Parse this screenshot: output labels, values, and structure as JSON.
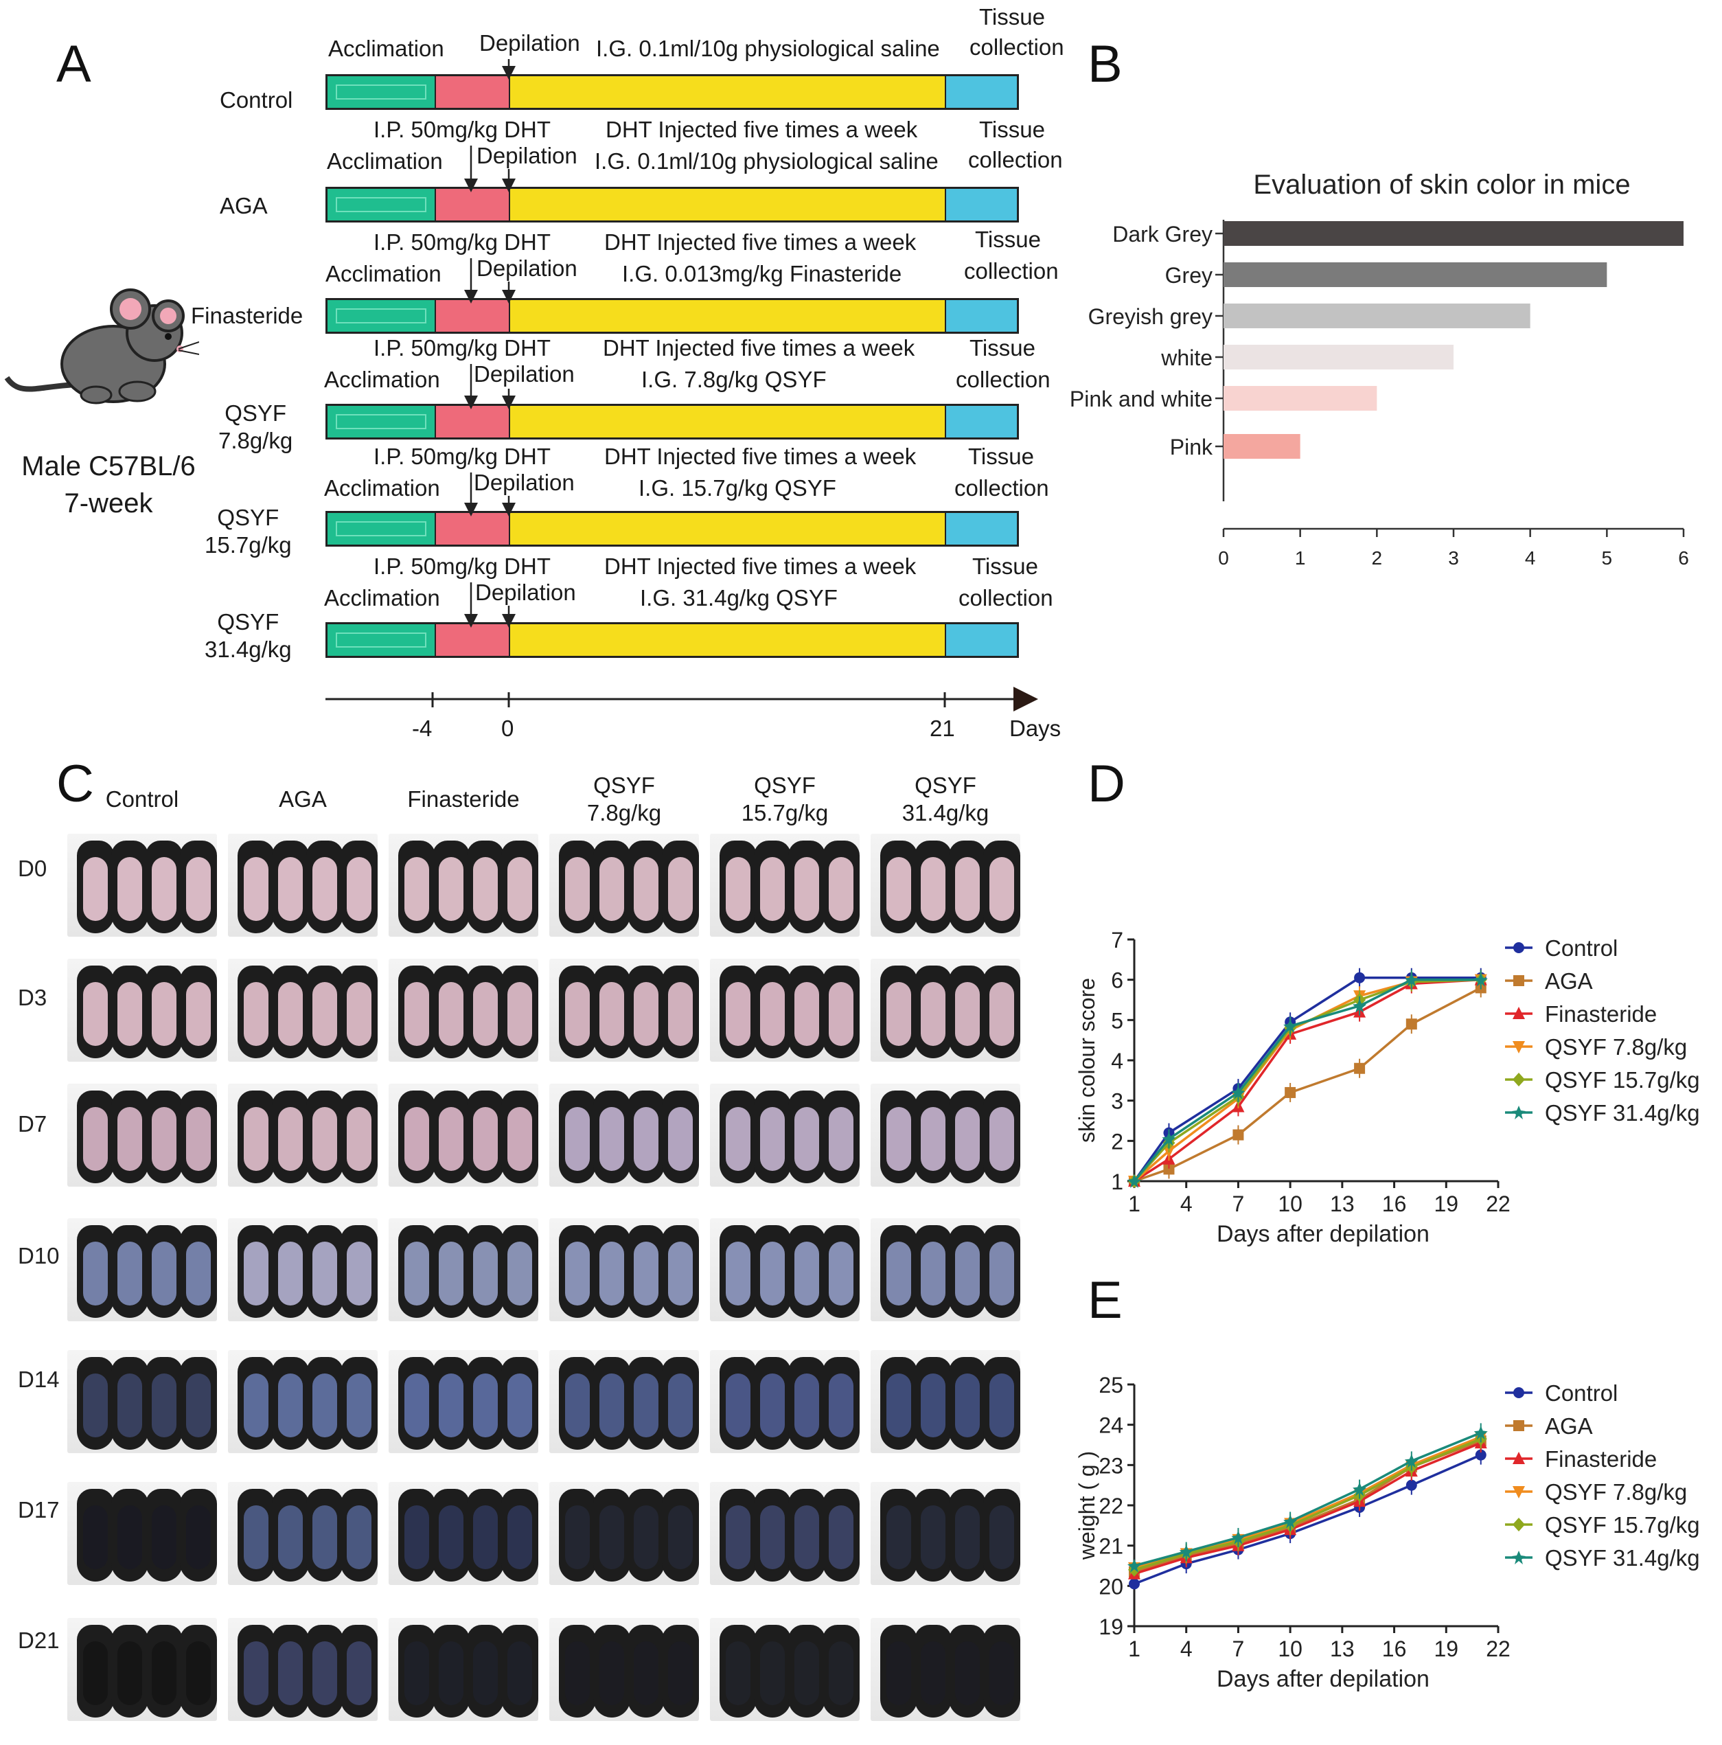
{
  "panels": {
    "a": "A",
    "b": "B",
    "c": "C",
    "d": "D",
    "e": "E"
  },
  "panel_a": {
    "animal_line1": "Male C57BL/6",
    "animal_line2": "7-week",
    "top_labels": {
      "acclimation": "Acclimation",
      "depilation": "Depilation",
      "saline": "I.G. 0.1ml/10g physiological saline",
      "tissue1": "Tissue",
      "tissue2": "collection"
    },
    "groups": [
      {
        "name": "Control",
        "name2": ""
      },
      {
        "name": "AGA",
        "name2": "",
        "ip": "I.P.  50mg/kg DHT",
        "dht": "DHT Injected five times a week",
        "ig": "I.G. 0.1ml/10g physiological saline"
      },
      {
        "name": "Finasteride",
        "name2": "",
        "ip": "I.P.  50mg/kg DHT",
        "dht": "DHT Injected five times a week",
        "ig": "I.G. 0.013mg/kg Finasteride"
      },
      {
        "name": "QSYF",
        "name2": "7.8g/kg",
        "ip": "I.P.  50mg/kg DHT",
        "dht": "DHT Injected five times a week",
        "ig": "I.G. 7.8g/kg QSYF"
      },
      {
        "name": "QSYF",
        "name2": "15.7g/kg",
        "ip": "I.P.  50mg/kg DHT",
        "dht": "DHT Injected five times a week",
        "ig": "I.G. 15.7g/kg QSYF"
      },
      {
        "name": "QSYF",
        "name2": "31.4g/kg",
        "ip": "I.P.  50mg/kg DHT",
        "dht": "DHT Injected five times a week",
        "ig": "I.G. 31.4g/kg QSYF"
      }
    ],
    "axis": {
      "ticks": [
        "-4",
        "0",
        "21"
      ],
      "unit": "Days"
    }
  },
  "panel_c": {
    "columns": [
      {
        "line1": "Control",
        "line2": ""
      },
      {
        "line1": "AGA",
        "line2": ""
      },
      {
        "line1": "Finasteride",
        "line2": ""
      },
      {
        "line1": "QSYF",
        "line2": "7.8g/kg"
      },
      {
        "line1": "QSYF",
        "line2": "15.7g/kg"
      },
      {
        "line1": "QSYF",
        "line2": "31.4g/kg"
      }
    ],
    "rows": [
      "D0",
      "D3",
      "D7",
      "D10",
      "D14",
      "D17",
      "D21"
    ]
  },
  "chart_data": [
    {
      "id": "B",
      "type": "bar",
      "orientation": "horizontal",
      "title": "Evaluation of skin color in mice",
      "categories": [
        "Dark Grey",
        "Grey",
        "Greyish grey",
        "white",
        "Pink and white",
        "Pink"
      ],
      "values": [
        6,
        5,
        4,
        3,
        2,
        1
      ],
      "colors": [
        "#4a4545",
        "#7b7b7b",
        "#c2c2c2",
        "#ebe3e3",
        "#f8d3d0",
        "#f4a79f"
      ],
      "xlim": [
        0,
        6
      ],
      "xticks": [
        "0",
        "1",
        "2",
        "3",
        "4",
        "5",
        "6"
      ]
    },
    {
      "id": "D",
      "type": "line",
      "title": "",
      "xlabel": "Days after depilation",
      "ylabel": "skin colour score",
      "x": [
        1,
        3,
        7,
        10,
        14,
        17,
        21
      ],
      "xticks": [
        "1",
        "4",
        "7",
        "10",
        "13",
        "16",
        "19",
        "22"
      ],
      "yticks": [
        "1",
        "2",
        "3",
        "4",
        "5",
        "6",
        "7"
      ],
      "xlim": [
        1,
        22
      ],
      "ylim": [
        1,
        7
      ],
      "series": [
        {
          "name": "Control",
          "color": "#1f2f9e",
          "marker": "circle",
          "values": [
            1,
            2.2,
            3.3,
            4.95,
            6.05,
            6.05,
            6.05
          ]
        },
        {
          "name": "AGA",
          "color": "#c07a2e",
          "marker": "square",
          "values": [
            1,
            1.3,
            2.15,
            3.2,
            3.8,
            4.9,
            5.8
          ]
        },
        {
          "name": "Finasteride",
          "color": "#e0262a",
          "marker": "triangle",
          "values": [
            1,
            1.55,
            2.85,
            4.65,
            5.2,
            5.9,
            6.0
          ]
        },
        {
          "name": "QSYF 7.8g/kg",
          "color": "#f08c1e",
          "marker": "triangle-down",
          "values": [
            1,
            1.75,
            3.05,
            4.75,
            5.6,
            5.95,
            6.0
          ]
        },
        {
          "name": "QSYF 15.7g/kg",
          "color": "#8fa81e",
          "marker": "diamond",
          "values": [
            1,
            1.95,
            3.1,
            4.8,
            5.5,
            5.95,
            6.0
          ]
        },
        {
          "name": "QSYF 31.4g/kg",
          "color": "#1a8a7a",
          "marker": "star",
          "values": [
            1,
            2.05,
            3.2,
            4.85,
            5.35,
            6.0,
            6.0
          ]
        }
      ]
    },
    {
      "id": "E",
      "type": "line",
      "title": "",
      "xlabel": "Days after depilation",
      "ylabel": "weight ( g )",
      "x": [
        1,
        4,
        7,
        10,
        14,
        17,
        21
      ],
      "xticks": [
        "1",
        "4",
        "7",
        "10",
        "13",
        "16",
        "19",
        "22"
      ],
      "yticks": [
        "19",
        "20",
        "21",
        "22",
        "23",
        "24",
        "25"
      ],
      "xlim": [
        1,
        22
      ],
      "ylim": [
        19,
        25
      ],
      "series": [
        {
          "name": "Control",
          "color": "#1f2f9e",
          "marker": "circle",
          "values": [
            20.05,
            20.55,
            20.9,
            21.3,
            21.95,
            22.5,
            23.25
          ]
        },
        {
          "name": "AGA",
          "color": "#c07a2e",
          "marker": "square",
          "values": [
            20.35,
            20.75,
            21.05,
            21.45,
            22.15,
            22.95,
            23.6
          ]
        },
        {
          "name": "Finasteride",
          "color": "#e0262a",
          "marker": "triangle",
          "values": [
            20.3,
            20.7,
            21.0,
            21.4,
            22.1,
            22.85,
            23.55
          ]
        },
        {
          "name": "QSYF 7.8g/kg",
          "color": "#f08c1e",
          "marker": "triangle-down",
          "values": [
            20.45,
            20.8,
            21.15,
            21.55,
            22.3,
            23.0,
            23.7
          ]
        },
        {
          "name": "QSYF 15.7g/kg",
          "color": "#8fa81e",
          "marker": "diamond",
          "values": [
            20.4,
            20.8,
            21.1,
            21.5,
            22.25,
            22.95,
            23.65
          ]
        },
        {
          "name": "QSYF 31.4g/kg",
          "color": "#1a8a7a",
          "marker": "star",
          "values": [
            20.5,
            20.85,
            21.2,
            21.6,
            22.4,
            23.1,
            23.8
          ]
        }
      ]
    }
  ]
}
